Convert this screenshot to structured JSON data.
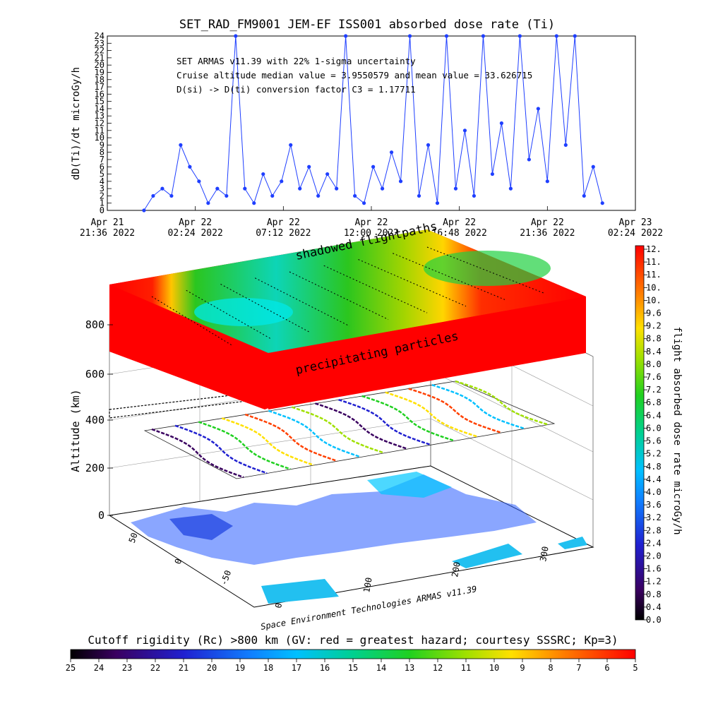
{
  "chart_data": [
    {
      "type": "line",
      "title": "SET_RAD_FM9001  JEM-EF ISS001 absorbed dose rate (Ti)",
      "ylabel": "dD(Ti)/dt microGy/h",
      "ylim": [
        0,
        24
      ],
      "yticks": [
        "0",
        "1",
        "2",
        "3",
        "4",
        "5",
        "6",
        "7",
        "8",
        "9",
        "10",
        "11",
        "12",
        "13",
        "14",
        "15",
        "16",
        "17",
        "18",
        "19",
        "20",
        "21",
        "22",
        "23",
        "24"
      ],
      "xticks": [
        {
          "line1": "Apr 21",
          "line2": "21:36 2022"
        },
        {
          "line1": "Apr 22",
          "line2": "02:24 2022"
        },
        {
          "line1": "Apr 22",
          "line2": "07:12 2022"
        },
        {
          "line1": "Apr 22",
          "line2": "12:00 2022"
        },
        {
          "line1": "Apr 22",
          "line2": "16:48 2022"
        },
        {
          "line1": "Apr 22",
          "line2": "21:36 2022"
        },
        {
          "line1": "Apr 23",
          "line2": "02:24 2022"
        }
      ],
      "annotations": [
        "SET ARMAS v11.39 with 22% 1-sigma uncertainty",
        "Cruise altitude median value = 3.9550579 and mean value = 33.626715",
        "D(si) -> D(ti) conversion factor C3 = 1.17711"
      ],
      "x_hours": [
        0.0,
        0.5,
        1.0,
        1.5,
        2.0,
        2.5,
        3.0,
        3.5,
        4.0,
        4.5,
        5.0,
        5.5,
        6.0,
        6.5,
        7.0,
        7.5,
        8.0,
        8.5,
        9.0,
        9.5,
        10.0,
        10.5,
        11.0,
        11.5,
        12.0,
        12.5,
        13.0,
        13.5,
        14.0,
        14.5,
        15.0,
        15.5,
        16.0,
        16.5,
        17.0,
        17.5,
        18.0,
        18.5,
        19.0,
        19.5,
        20.0,
        20.5,
        21.0,
        21.5,
        22.0,
        22.5,
        23.0,
        23.5,
        24.0,
        24.5,
        25.0
      ],
      "series": [
        {
          "color": "#1f3fff",
          "values": [
            0,
            2,
            3,
            2,
            9,
            6,
            4,
            1,
            3,
            2,
            24,
            3,
            1,
            5,
            2,
            4,
            9,
            3,
            6,
            2,
            5,
            3,
            24,
            2,
            1,
            6,
            3,
            8,
            4,
            24,
            2,
            9,
            1,
            24,
            3,
            11,
            2,
            24,
            5,
            12,
            3,
            24,
            7,
            14,
            4,
            24,
            9,
            24,
            2,
            6,
            1
          ]
        }
      ]
    },
    {
      "type": "heatmap",
      "title": "",
      "ylabel": "Altitude (km)",
      "zticks": [
        "0",
        "200",
        "400",
        "600",
        "800"
      ],
      "x_ticks": [
        "0",
        "100",
        "200",
        "300"
      ],
      "y_ticks": [
        "-50",
        "0",
        "50"
      ],
      "labels": {
        "shadowed": "shadowed flightpaths",
        "precipitating": "precipitating particles",
        "credit": "Space Environment Technologies ARMAS v11.39"
      },
      "colorbar_label": "flight absorbed dose rate microGy/h",
      "colorbar_ticks": [
        "0.0",
        "0.4",
        "0.8",
        "1.2",
        "1.6",
        "2.0",
        "2.4",
        "2.8",
        "3.2",
        "3.6",
        "4.0",
        "4.4",
        "4.8",
        "5.2",
        "5.6",
        "6.0",
        "6.4",
        "6.8",
        "7.2",
        "7.6",
        "8.0",
        "8.4",
        "8.8",
        "9.2",
        "9.6",
        "10.",
        "10.",
        "11.",
        "11.",
        "12."
      ],
      "cutoff_title": "Cutoff rigidity (Rc) >800 km (GV: red = greatest hazard; courtesy SSSRC; Kp=3)",
      "cutoff_ticks": [
        "25",
        "24",
        "23",
        "22",
        "21",
        "20",
        "19",
        "18",
        "17",
        "16",
        "15",
        "14",
        "13",
        "12",
        "11",
        "10",
        "9",
        "8",
        "7",
        "6",
        "5"
      ]
    }
  ]
}
